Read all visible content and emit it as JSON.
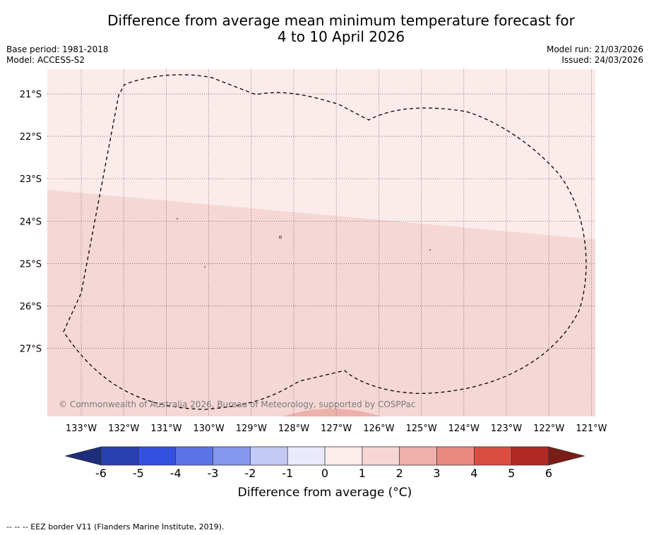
{
  "title": {
    "line1": "Difference from average mean minimum temperature forecast for",
    "line2": "4 to 10 April 2026"
  },
  "meta": {
    "base_period": "Base period: 1981-2018",
    "model": "Model: ACCESS-S2",
    "model_run": "Model run: 21/03/2026",
    "issued": "Issued: 24/03/2026"
  },
  "map": {
    "lon_labels": [
      "133°W",
      "132°W",
      "131°W",
      "130°W",
      "129°W",
      "128°W",
      "127°W",
      "126°W",
      "125°W",
      "124°W",
      "123°W",
      "122°W",
      "121°W"
    ],
    "lat_labels": [
      "21°S",
      "22°S",
      "23°S",
      "24°S",
      "25°S",
      "26°S",
      "27°S"
    ],
    "regions": [
      {
        "name": "0 to 1 °C",
        "color": "#fbeceb"
      },
      {
        "name": "1 to 2 °C",
        "color": "#f5d7d5"
      },
      {
        "name": "2 to 3 °C",
        "color": "#edb1ab"
      }
    ],
    "copyright": "© Commonwealth of Australia 2026, Bureau of Meteorology, supported by COSPPac"
  },
  "colorbar": {
    "ticks": [
      "-6",
      "-5",
      "-4",
      "-3",
      "-2",
      "-1",
      "0",
      "1",
      "2",
      "3",
      "4",
      "5",
      "6"
    ],
    "colors": [
      "#2a3fb0",
      "#3450e0",
      "#5b73e6",
      "#8496ee",
      "#c3c9f5",
      "#e8eafb",
      "#fcecea",
      "#f6d6d4",
      "#eeb0aa",
      "#e98a80",
      "#db4d41",
      "#b02a22"
    ],
    "under_color": "#1e2e7a",
    "over_color": "#7a1d18",
    "label": "Difference from average (°C)"
  },
  "footer": {
    "legend": "--  --  -- EEZ border V11 (Flanders Marine Institute, 2019)."
  }
}
